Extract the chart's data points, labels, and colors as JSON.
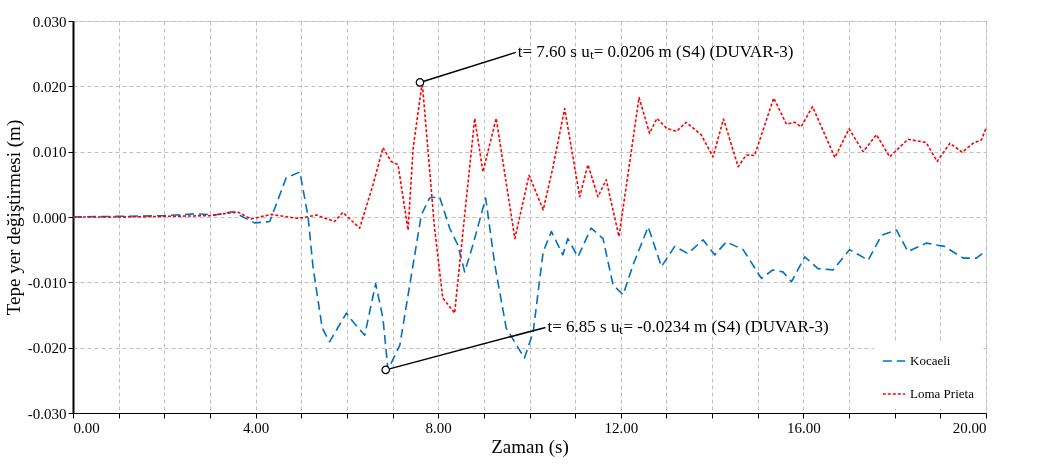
{
  "chart_data": {
    "type": "line",
    "xlabel": "Zaman (s)",
    "ylabel": "Tepe yer değiştirmesi (m)",
    "xlim": [
      0,
      20
    ],
    "ylim": [
      -0.03,
      0.03
    ],
    "xticks": [
      {
        "value": 0,
        "label": "0.00"
      },
      {
        "value": 1,
        "label": null
      },
      {
        "value": 2,
        "label": null
      },
      {
        "value": 3,
        "label": null
      },
      {
        "value": 4,
        "label": "4.00"
      },
      {
        "value": 5,
        "label": null
      },
      {
        "value": 6,
        "label": null
      },
      {
        "value": 7,
        "label": null
      },
      {
        "value": 8,
        "label": "8.00"
      },
      {
        "value": 9,
        "label": null
      },
      {
        "value": 10,
        "label": null
      },
      {
        "value": 11,
        "label": null
      },
      {
        "value": 12,
        "label": "12.00"
      },
      {
        "value": 13,
        "label": null
      },
      {
        "value": 14,
        "label": null
      },
      {
        "value": 15,
        "label": null
      },
      {
        "value": 16,
        "label": "16.00"
      },
      {
        "value": 17,
        "label": null
      },
      {
        "value": 18,
        "label": null
      },
      {
        "value": 19,
        "label": null
      },
      {
        "value": 20,
        "label": "20.00"
      }
    ],
    "yticks": [
      {
        "value": -0.03,
        "label": "-0.030"
      },
      {
        "value": -0.02,
        "label": "-0.020"
      },
      {
        "value": -0.01,
        "label": "-0.010"
      },
      {
        "value": 0,
        "label": "0.000"
      },
      {
        "value": 0.01,
        "label": "0.010"
      },
      {
        "value": 0.02,
        "label": "0.020"
      },
      {
        "value": 0.03,
        "label": "0.030"
      }
    ],
    "grid": true,
    "legend": "bottom right",
    "series": [
      {
        "name": "Kocaeli",
        "color": "#0070c0",
        "line_style": "dashed",
        "x": [
          0,
          1,
          2,
          2.7,
          3.1,
          3.5,
          3.98,
          4.31,
          4.67,
          4.97,
          5.15,
          5.26,
          5.46,
          5.62,
          5.99,
          6.13,
          6.39,
          6.63,
          6.79,
          6.9,
          7.16,
          7.45,
          7.63,
          7.81,
          8.03,
          8.25,
          8.43,
          8.58,
          8.76,
          9.04,
          9.24,
          9.49,
          9.89,
          10.08,
          10.3,
          10.48,
          10.73,
          10.84,
          11.06,
          11.35,
          11.61,
          11.83,
          12.05,
          12.27,
          12.6,
          12.89,
          13.18,
          13.47,
          13.8,
          14.06,
          14.31,
          14.68,
          15.08,
          15.33,
          15.55,
          15.74,
          16.03,
          16.32,
          16.65,
          17.01,
          17.42,
          17.71,
          18.04,
          18.29,
          18.69,
          19.09,
          19.5,
          19.79,
          19.97,
          20
        ],
        "values": [
          0,
          0.0001,
          0.0002,
          0.0005,
          0.0003,
          0.0008,
          -0.0009,
          -0.0007,
          0.006,
          0.0069,
          0,
          -0.0078,
          -0.017,
          -0.0191,
          -0.0147,
          -0.016,
          -0.0181,
          -0.0102,
          -0.0155,
          -0.0234,
          -0.0196,
          -0.0073,
          0.0003,
          0.0029,
          0.0031,
          -0.0017,
          -0.0043,
          -0.0084,
          -0.0043,
          0.0029,
          -0.0073,
          -0.017,
          -0.0216,
          -0.0176,
          -0.0053,
          -0.0022,
          -0.0058,
          -0.0033,
          -0.0061,
          -0.0017,
          -0.0033,
          -0.0104,
          -0.0119,
          -0.0073,
          -0.0015,
          -0.0076,
          -0.0045,
          -0.0056,
          -0.0035,
          -0.0058,
          -0.0038,
          -0.005,
          -0.0094,
          -0.0081,
          -0.0084,
          -0.0099,
          -0.0061,
          -0.0079,
          -0.0081,
          -0.005,
          -0.0066,
          -0.0028,
          -0.002,
          -0.0053,
          -0.004,
          -0.0045,
          -0.0063,
          -0.0063,
          -0.0053,
          -0.005
        ]
      },
      {
        "name": "Loma Prieta",
        "color": "#ff0000",
        "line_style": "dotted",
        "x": [
          0,
          1,
          2,
          3,
          3.6,
          3.9,
          4.35,
          4.9,
          5.04,
          5.33,
          5.73,
          5.91,
          6.28,
          6.57,
          6.79,
          6.97,
          7.12,
          7.34,
          7.45,
          7.65,
          7.92,
          8.1,
          8.36,
          8.58,
          8.8,
          8.98,
          9.27,
          9.68,
          9.99,
          10.3,
          10.51,
          10.77,
          11.1,
          11.28,
          11.5,
          11.68,
          11.96,
          12.4,
          12.63,
          12.79,
          13.0,
          13.22,
          13.43,
          13.76,
          14.02,
          14.25,
          14.57,
          14.75,
          14.93,
          15.35,
          15.63,
          15.81,
          15.95,
          16.2,
          16.69,
          17.0,
          17.31,
          17.6,
          17.89,
          18.29,
          18.69,
          18.93,
          19.21,
          19.48,
          19.72,
          19.9,
          20
        ],
        "values": [
          0,
          0,
          0.0001,
          0.0002,
          0.0008,
          -0.0003,
          0.0004,
          -0.0002,
          -0.0001,
          0.0003,
          -0.0007,
          0.0007,
          -0.0017,
          0.0049,
          0.0106,
          0.0085,
          0.008,
          -0.002,
          0.0105,
          0.0206,
          -0.0017,
          -0.0124,
          -0.0147,
          0.0003,
          0.0151,
          0.0069,
          0.0151,
          -0.0033,
          0.0064,
          0.0011,
          0.0075,
          0.0166,
          0.0031,
          0.008,
          0.0031,
          0.0057,
          -0.003,
          0.0183,
          0.0128,
          0.0151,
          0.0136,
          0.0131,
          0.0145,
          0.0126,
          0.0092,
          0.015,
          0.0077,
          0.0095,
          0.0094,
          0.0182,
          0.0142,
          0.0145,
          0.0138,
          0.0169,
          0.0091,
          0.0135,
          0.01,
          0.0126,
          0.0092,
          0.0119,
          0.0114,
          0.0085,
          0.0113,
          0.0099,
          0.0113,
          0.0118,
          0.0136
        ]
      }
    ],
    "annotations": [
      {
        "text": "t= 7.60 s uₜ= 0.0206 m (S4) (DUVAR-3)",
        "x": 7.6,
        "y": 0.0206
      },
      {
        "text": "t= 6.85 s uₜ= -0.0234 m (S4) (DUVAR-3)",
        "x": 6.85,
        "y": -0.0234
      }
    ]
  }
}
